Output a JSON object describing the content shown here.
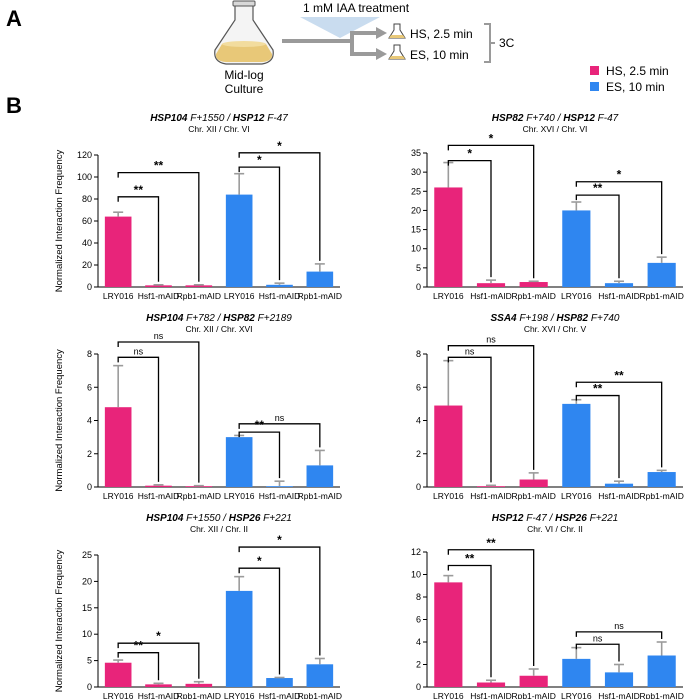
{
  "panel_labels": {
    "a": "A",
    "b": "B"
  },
  "schematic": {
    "treatment": "1 mM IAA treatment",
    "flask_label_line1": "Mid-log",
    "flask_label_line2": "Culture",
    "hs_label": "HS, 2.5 min",
    "es_label": "ES, 10 min",
    "assay": "3C"
  },
  "legend": [
    {
      "label": "HS, 2.5 min",
      "color": "#e8247a"
    },
    {
      "label": "ES, 10 min",
      "color": "#2f86f0"
    }
  ],
  "colors": {
    "hs": "#e8247a",
    "es": "#2f86f0",
    "error": "#9b9b9b"
  },
  "ylabel": "Normalized Interaction Frequency",
  "chart_data": [
    {
      "type": "bar",
      "title_parts": [
        {
          "t": "HSP104",
          "b": true
        },
        {
          "t": " F+1550 / ",
          "b": false
        },
        {
          "t": "HSP12",
          "b": true
        },
        {
          "t": " F-47",
          "b": false
        }
      ],
      "subtitle": "Chr. XII / Chr. VI",
      "categories": [
        "LRY016",
        "Hsf1-mAID",
        "Rpb1-mAID",
        "LRY016",
        "Hsf1-mAID",
        "Rpb1-mAID"
      ],
      "groups": [
        "HS",
        "HS",
        "HS",
        "ES",
        "ES",
        "ES"
      ],
      "values": [
        64,
        1.5,
        1.5,
        84,
        2,
        14
      ],
      "errors": [
        4,
        0.5,
        0.5,
        19,
        1.5,
        7
      ],
      "ylim": [
        0,
        120
      ],
      "yticks": [
        0,
        20,
        40,
        60,
        80,
        100,
        120
      ],
      "ylabel": "Normalized Interaction Frequency",
      "sig": [
        {
          "from": 0,
          "to": 1,
          "label": "**",
          "level": 82
        },
        {
          "from": 0,
          "to": 2,
          "label": "**",
          "level": 104
        },
        {
          "from": 3,
          "to": 4,
          "label": "*",
          "level": 109
        },
        {
          "from": 3,
          "to": 5,
          "label": "*",
          "level": 122
        }
      ]
    },
    {
      "type": "bar",
      "title_parts": [
        {
          "t": "HSP82",
          "b": true
        },
        {
          "t": " F+740 / ",
          "b": false
        },
        {
          "t": "HSP12",
          "b": true
        },
        {
          "t": " F-47",
          "b": false
        }
      ],
      "subtitle": "Chr. XVI / Chr. VI",
      "categories": [
        "LRY016",
        "Hsf1-mAID",
        "Rpb1-mAID",
        "LRY016",
        "Hsf1-mAID",
        "Rpb1-mAID"
      ],
      "groups": [
        "HS",
        "HS",
        "HS",
        "ES",
        "ES",
        "ES"
      ],
      "values": [
        26,
        1,
        1.3,
        20,
        1,
        6.3
      ],
      "errors": [
        6.5,
        0.8,
        0.2,
        2.2,
        0.5,
        1.5
      ],
      "ylim": [
        0,
        35
      ],
      "yticks": [
        0,
        5,
        10,
        15,
        20,
        25,
        30,
        35
      ],
      "ylabel": "",
      "sig": [
        {
          "from": 0,
          "to": 1,
          "label": "*",
          "level": 33
        },
        {
          "from": 0,
          "to": 2,
          "label": "*",
          "level": 37
        },
        {
          "from": 3,
          "to": 4,
          "label": "**",
          "level": 24
        },
        {
          "from": 3,
          "to": 5,
          "label": "*",
          "level": 27.5
        }
      ]
    },
    {
      "type": "bar",
      "title_parts": [
        {
          "t": "HSP104",
          "b": true
        },
        {
          "t": " F+782 / ",
          "b": false
        },
        {
          "t": "HSP82",
          "b": true
        },
        {
          "t": " F+2189",
          "b": false
        }
      ],
      "subtitle": "Chr. XII / Chr. XVI",
      "categories": [
        "LRY016",
        "Hsf1-mAID",
        "Rpb1-mAID",
        "LRY016",
        "Hsf1-mAID",
        "Rpb1-mAID"
      ],
      "groups": [
        "HS",
        "HS",
        "HS",
        "ES",
        "ES",
        "ES"
      ],
      "values": [
        4.8,
        0.08,
        0.05,
        3.0,
        0.05,
        1.3
      ],
      "errors": [
        2.5,
        0.05,
        0.03,
        0.1,
        0.3,
        0.9
      ],
      "ylim": [
        0,
        8
      ],
      "yticks": [
        0,
        2,
        4,
        6,
        8
      ],
      "ylabel": "Normalized Interaction Frequency",
      "sig": [
        {
          "from": 0,
          "to": 1,
          "label": "ns",
          "level": 7.8
        },
        {
          "from": 0,
          "to": 2,
          "label": "ns",
          "level": 8.8
        },
        {
          "from": 3,
          "to": 4,
          "label": "**",
          "level": 3.3
        },
        {
          "from": 3,
          "to": 5,
          "label": "ns",
          "level": 3.8
        }
      ]
    },
    {
      "type": "bar",
      "title_parts": [
        {
          "t": "SSA4",
          "b": true
        },
        {
          "t": " F+198 / ",
          "b": false
        },
        {
          "t": "HSP82",
          "b": true
        },
        {
          "t": " F+740",
          "b": false
        }
      ],
      "subtitle": "Chr. XVI / Chr. V",
      "categories": [
        "LRY016",
        "Hsf1-mAID",
        "Rpb1-mAID",
        "LRY016",
        "Hsf1-mAID",
        "Rpb1-mAID"
      ],
      "groups": [
        "HS",
        "HS",
        "HS",
        "ES",
        "ES",
        "ES"
      ],
      "values": [
        4.9,
        0.05,
        0.45,
        5.0,
        0.2,
        0.9
      ],
      "errors": [
        2.7,
        0.05,
        0.4,
        0.25,
        0.15,
        0.1
      ],
      "ylim": [
        0,
        8
      ],
      "yticks": [
        0,
        2,
        4,
        6,
        8
      ],
      "ylabel": "",
      "sig": [
        {
          "from": 0,
          "to": 1,
          "label": "ns",
          "level": 7.8
        },
        {
          "from": 0,
          "to": 2,
          "label": "ns",
          "level": 8.5
        },
        {
          "from": 3,
          "to": 4,
          "label": "**",
          "level": 5.5
        },
        {
          "from": 3,
          "to": 5,
          "label": "**",
          "level": 6.3
        }
      ]
    },
    {
      "type": "bar",
      "title_parts": [
        {
          "t": "HSP104",
          "b": true
        },
        {
          "t": " F+1550 / ",
          "b": false
        },
        {
          "t": "HSP26",
          "b": true
        },
        {
          "t": " F+221",
          "b": false
        }
      ],
      "subtitle": "Chr. XII / Chr. II",
      "categories": [
        "LRY016",
        "Hsf1-mAID",
        "Rpb1-mAID",
        "LRY016",
        "Hsf1-mAID",
        "Rpb1-mAID"
      ],
      "groups": [
        "HS",
        "HS",
        "HS",
        "ES",
        "ES",
        "ES"
      ],
      "values": [
        4.6,
        0.5,
        0.6,
        18.2,
        1.7,
        4.3
      ],
      "errors": [
        0.5,
        0.2,
        0.4,
        2.7,
        0.1,
        1.1
      ],
      "ylim": [
        0,
        25
      ],
      "yticks": [
        0,
        5,
        10,
        15,
        20,
        25
      ],
      "ylabel": "Normalized Interaction Frequency",
      "sig": [
        {
          "from": 0,
          "to": 1,
          "label": "**",
          "level": 6.5
        },
        {
          "from": 0,
          "to": 2,
          "label": "*",
          "level": 8.3
        },
        {
          "from": 3,
          "to": 4,
          "label": "*",
          "level": 22.5
        },
        {
          "from": 3,
          "to": 5,
          "label": "*",
          "level": 26.5
        }
      ]
    },
    {
      "type": "bar",
      "title_parts": [
        {
          "t": "HSP12",
          "b": true
        },
        {
          "t": " F-47 / ",
          "b": false
        },
        {
          "t": "HSP26",
          "b": true
        },
        {
          "t": " F+221",
          "b": false
        }
      ],
      "subtitle": "Chr. VI / Chr. II",
      "categories": [
        "LRY016",
        "Hsf1-mAID",
        "Rpb1-mAID",
        "LRY016",
        "Hsf1-mAID",
        "Rpb1-mAID"
      ],
      "groups": [
        "HS",
        "HS",
        "HS",
        "ES",
        "ES",
        "ES"
      ],
      "values": [
        9.3,
        0.4,
        1.0,
        2.5,
        1.3,
        2.8
      ],
      "errors": [
        0.6,
        0.2,
        0.6,
        1.0,
        0.7,
        1.2
      ],
      "ylim": [
        0,
        12
      ],
      "yticks": [
        0,
        2,
        4,
        6,
        8,
        10,
        12
      ],
      "ylabel": "",
      "sig": [
        {
          "from": 0,
          "to": 1,
          "label": "**",
          "level": 10.8
        },
        {
          "from": 0,
          "to": 2,
          "label": "**",
          "level": 12.2
        },
        {
          "from": 3,
          "to": 4,
          "label": "ns",
          "level": 3.8
        },
        {
          "from": 3,
          "to": 5,
          "label": "ns",
          "level": 4.9
        }
      ]
    }
  ]
}
